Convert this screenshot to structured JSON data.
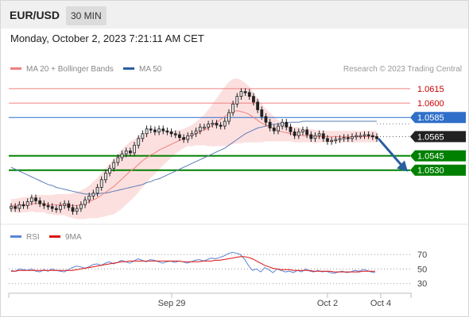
{
  "header": {
    "symbol": "EUR/USD",
    "timeframe": "30 MIN",
    "datetime": "Monday, October 2, 2023 7:21:11 AM CET"
  },
  "legend": {
    "ma20": "MA 20 + Bollinger Bands",
    "ma50": "MA 50",
    "credit": "Research © 2023 Trading Central",
    "rsi": "RSI",
    "ma9": "9MA"
  },
  "colors": {
    "resistance": "#f08080",
    "resistance_text": "#cc0000",
    "pivot": "#2f6fc9",
    "support": "#008000",
    "current": "#222222",
    "ma20": "#f08080",
    "bollinger_fill": "#fbdada",
    "ma50": "#5b7bb3",
    "arrow": "#2a5ea0",
    "rsi": "#5b85d6",
    "ma9": "#dd1111",
    "candle_up": "#e8e8e8",
    "candle_down": "#222222"
  },
  "chart_data": [
    {
      "type": "candlestick",
      "instrument": "EUR/USD",
      "timeframe": "30 MIN",
      "ylim": [
        1.0476,
        1.0629
      ],
      "x_ticks": [
        "Sep 29",
        "Oct 2",
        "Oct 4"
      ],
      "levels": [
        {
          "value": 1.0615,
          "label": "1.0615",
          "kind": "resistance"
        },
        {
          "value": 1.06,
          "label": "1.0600",
          "kind": "resistance"
        },
        {
          "value": 1.0585,
          "label": "1.0585",
          "kind": "pivot"
        },
        {
          "value": 1.0565,
          "label": "1.0565",
          "kind": "current"
        },
        {
          "value": 1.0545,
          "label": "1.0545",
          "kind": "support"
        },
        {
          "value": 1.053,
          "label": "1.0530",
          "kind": "support"
        }
      ],
      "projection": {
        "from_price": 1.0563,
        "to_price": 1.0531
      },
      "closes": [
        1.0492,
        1.049,
        1.0494,
        1.0493,
        1.0497,
        1.0501,
        1.0498,
        1.0495,
        1.0493,
        1.0492,
        1.049,
        1.0489,
        1.0493,
        1.0495,
        1.0491,
        1.0487,
        1.049,
        1.0494,
        1.0499,
        1.0503,
        1.0506,
        1.0512,
        1.052,
        1.0527,
        1.0532,
        1.0538,
        1.0543,
        1.0547,
        1.055,
        1.0548,
        1.0556,
        1.0563,
        1.0568,
        1.0573,
        1.0572,
        1.057,
        1.0573,
        1.0571,
        1.057,
        1.0568,
        1.0567,
        1.0564,
        1.0562,
        1.0566,
        1.0568,
        1.0571,
        1.0575,
        1.0575,
        1.0578,
        1.0579,
        1.0577,
        1.0576,
        1.0581,
        1.059,
        1.0599,
        1.0607,
        1.0612,
        1.0611,
        1.0607,
        1.0601,
        1.0593,
        1.0586,
        1.058,
        1.0574,
        1.0571,
        1.0576,
        1.058,
        1.0575,
        1.057,
        1.0566,
        1.057,
        1.0572,
        1.0567,
        1.0563,
        1.0566,
        1.0568,
        1.0563,
        1.056,
        1.0561,
        1.0562,
        1.0563,
        1.0564,
        1.0563,
        1.0565,
        1.0566,
        1.0566,
        1.0567,
        1.0566,
        1.0565,
        1.0563
      ],
      "ma20": [
        1.0493,
        1.0493,
        1.0493,
        1.0494,
        1.0494,
        1.0495,
        1.0495,
        1.0495,
        1.0495,
        1.0494,
        1.0494,
        1.0494,
        1.0494,
        1.0494,
        1.0493,
        1.0493,
        1.0493,
        1.0494,
        1.0495,
        1.0497,
        1.0499,
        1.0501,
        1.0504,
        1.0507,
        1.051,
        1.0513,
        1.0517,
        1.0521,
        1.0525,
        1.0529,
        1.0532,
        1.0536,
        1.054,
        1.0543,
        1.0546,
        1.0548,
        1.0551,
        1.0553,
        1.0555,
        1.0557,
        1.0559,
        1.0561,
        1.0563,
        1.0565,
        1.0566,
        1.0568,
        1.057,
        1.0572,
        1.0574,
        1.0577,
        1.058,
        1.0583,
        1.0586,
        1.0589,
        1.0591,
        1.0592,
        1.0591,
        1.059,
        1.0588,
        1.0585,
        1.0582,
        1.0579,
        1.0577,
        1.0575,
        1.0573,
        1.0571,
        1.057,
        1.0569,
        1.0568,
        1.0567,
        1.0567,
        1.0566,
        1.0566,
        1.0566,
        1.0565,
        1.0565,
        1.0565,
        1.0565,
        1.0565,
        1.0565,
        1.0565,
        1.0565,
        1.0565,
        1.0565,
        1.0565,
        1.0565,
        1.0565,
        1.0565,
        1.0565,
        1.0565
      ],
      "bollinger_band_width": [
        0.0007,
        0.0007,
        0.0008,
        0.0008,
        0.0008,
        0.0008,
        0.0009,
        0.0009,
        0.0009,
        0.001,
        0.001,
        0.0011,
        0.0011,
        0.0011,
        0.0012,
        0.0013,
        0.0014,
        0.0015,
        0.0016,
        0.0017,
        0.0019,
        0.0021,
        0.0023,
        0.0025,
        0.0027,
        0.0029,
        0.003,
        0.0031,
        0.0031,
        0.0031,
        0.003,
        0.0029,
        0.0028,
        0.0026,
        0.0024,
        0.0022,
        0.002,
        0.0018,
        0.0016,
        0.0014,
        0.0012,
        0.0011,
        0.001,
        0.001,
        0.0011,
        0.0012,
        0.0014,
        0.0016,
        0.0019,
        0.0022,
        0.0025,
        0.0028,
        0.0031,
        0.0033,
        0.0034,
        0.0034,
        0.0033,
        0.0031,
        0.0029,
        0.0026,
        0.0023,
        0.002,
        0.0017,
        0.0015,
        0.0013,
        0.0011,
        0.001,
        0.0009,
        0.0008,
        0.0008,
        0.0008,
        0.0007,
        0.0007,
        0.0007,
        0.0007,
        0.0006,
        0.0006,
        0.0006,
        0.0006,
        0.0006,
        0.0006,
        0.0006,
        0.0006,
        0.0006,
        0.0006,
        0.0006,
        0.0006,
        0.0006,
        0.0006,
        0.0006
      ],
      "ma50": [
        1.0533,
        1.0531,
        1.0529,
        1.0527,
        1.0525,
        1.0523,
        1.0521,
        1.0519,
        1.0517,
        1.0515,
        1.0514,
        1.0512,
        1.0511,
        1.051,
        1.0509,
        1.0508,
        1.0507,
        1.0506,
        1.0505,
        1.0505,
        1.0505,
        1.0505,
        1.0506,
        1.0506,
        1.0507,
        1.0508,
        1.0509,
        1.051,
        1.0511,
        1.0512,
        1.0513,
        1.0514,
        1.0515,
        1.0517,
        1.0518,
        1.052,
        1.0521,
        1.0523,
        1.0525,
        1.0527,
        1.0529,
        1.0531,
        1.0533,
        1.0535,
        1.0537,
        1.0539,
        1.0541,
        1.0543,
        1.0545,
        1.0547,
        1.0549,
        1.0551,
        1.0553,
        1.0556,
        1.0559,
        1.0562,
        1.0565,
        1.0568,
        1.057,
        1.0572,
        1.0574,
        1.0575,
        1.0576,
        1.0577,
        1.0578,
        1.0578,
        1.0579,
        1.0579,
        1.058,
        1.058,
        1.058,
        1.0581,
        1.0581,
        1.0581,
        1.0581,
        1.0581,
        1.0581,
        1.0581,
        1.0581,
        1.0581,
        1.0581,
        1.0581,
        1.0581,
        1.0581,
        1.0581,
        1.0581,
        1.0581,
        1.0581,
        1.0581,
        1.0581
      ]
    },
    {
      "type": "line",
      "name": "RSI panel",
      "ylim": [
        22,
        80
      ],
      "y_ticks": [
        70,
        50,
        30
      ],
      "series": [
        {
          "name": "RSI",
          "values": [
            48,
            47,
            50,
            49,
            48,
            50,
            47,
            46,
            49,
            47,
            50,
            48,
            47,
            46,
            49,
            52,
            54,
            53,
            51,
            53,
            56,
            57,
            55,
            58,
            60,
            57,
            59,
            62,
            60,
            58,
            61,
            64,
            62,
            60,
            63,
            62,
            60,
            58,
            60,
            61,
            59,
            61,
            60,
            58,
            60,
            62,
            63,
            61,
            63,
            65,
            64,
            66,
            68,
            71,
            73,
            72,
            70,
            64,
            55,
            48,
            50,
            46,
            52,
            49,
            45,
            50,
            48,
            46,
            47,
            45,
            48,
            46,
            50,
            47,
            46,
            48,
            46,
            47,
            45,
            44,
            46,
            47,
            45,
            46,
            48,
            47,
            49,
            48,
            46,
            45
          ]
        },
        {
          "name": "9MA",
          "values": [
            47,
            47,
            48,
            48,
            48,
            48,
            48,
            48,
            48,
            48,
            48,
            48,
            48,
            48,
            48,
            48,
            49,
            50,
            51,
            52,
            53,
            54,
            55,
            56,
            57,
            58,
            59,
            60,
            60,
            61,
            61,
            61,
            61,
            61,
            61,
            61,
            61,
            61,
            61,
            61,
            61,
            61,
            60,
            60,
            60,
            60,
            60,
            61,
            61,
            61,
            62,
            62,
            63,
            64,
            65,
            66,
            67,
            67,
            66,
            64,
            61,
            58,
            55,
            53,
            51,
            50,
            49,
            49,
            49,
            48,
            48,
            48,
            48,
            48,
            47,
            47,
            47,
            47,
            47,
            46,
            46,
            46,
            46,
            46,
            46,
            46,
            47,
            47,
            47,
            47
          ]
        }
      ]
    }
  ]
}
